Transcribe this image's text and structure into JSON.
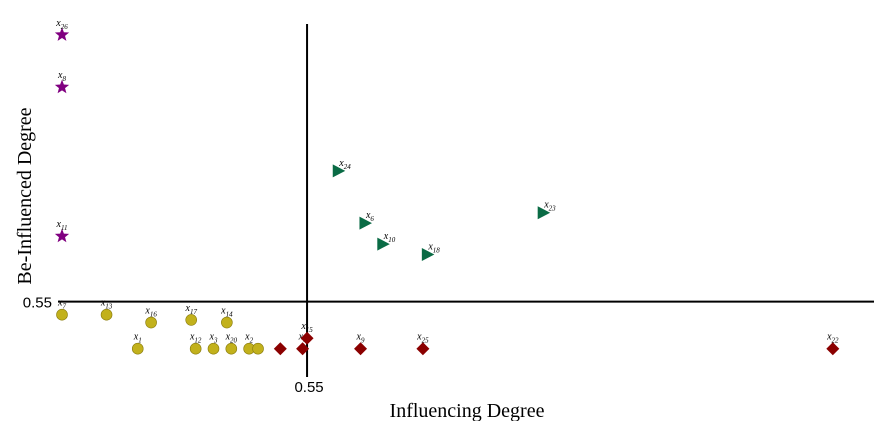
{
  "chart_data": {
    "type": "scatter",
    "xlabel": "Influencing Degree",
    "ylabel": "Be-Influenced Degree",
    "x_threshold": 0.55,
    "y_threshold": 0.55,
    "x_tick_label": "0.55",
    "y_tick_label": "0.55",
    "xlim": [
      0.0,
      1.8
    ],
    "ylim": [
      0.3,
      1.6
    ],
    "grid": false,
    "legend": "none",
    "colors": {
      "star": "#800080",
      "triangle": "#0a6b45",
      "sphere": "#c2b11c",
      "diamond": "#8b0000"
    },
    "series": [
      {
        "marker": "star",
        "points": [
          {
            "label": "x",
            "sub": "26",
            "x": 0.0,
            "y": 1.57
          },
          {
            "label": "x",
            "sub": "8",
            "x": 0.0,
            "y": 1.37
          },
          {
            "label": "x",
            "sub": "11",
            "x": 0.0,
            "y": 0.8
          }
        ]
      },
      {
        "marker": "triangle",
        "points": [
          {
            "label": "x",
            "sub": "24",
            "x": 0.62,
            "y": 1.05
          },
          {
            "label": "x",
            "sub": "6",
            "x": 0.68,
            "y": 0.85
          },
          {
            "label": "x",
            "sub": "10",
            "x": 0.72,
            "y": 0.77
          },
          {
            "label": "x",
            "sub": "18",
            "x": 0.82,
            "y": 0.73
          },
          {
            "label": "x",
            "sub": "23",
            "x": 1.08,
            "y": 0.89
          }
        ]
      },
      {
        "marker": "sphere",
        "points": [
          {
            "label": "x",
            "sub": "7",
            "x": 0.0,
            "y": 0.5
          },
          {
            "label": "x",
            "sub": "13",
            "x": 0.1,
            "y": 0.5
          },
          {
            "label": "x",
            "sub": "16",
            "x": 0.2,
            "y": 0.47
          },
          {
            "label": "x",
            "sub": "17",
            "x": 0.29,
            "y": 0.48
          },
          {
            "label": "x",
            "sub": "14",
            "x": 0.37,
            "y": 0.47
          },
          {
            "label": "x",
            "sub": "1",
            "x": 0.17,
            "y": 0.37
          },
          {
            "label": "x",
            "sub": "12",
            "x": 0.3,
            "y": 0.37
          },
          {
            "label": "x",
            "sub": "3",
            "x": 0.34,
            "y": 0.37
          },
          {
            "label": "x",
            "sub": "20",
            "x": 0.38,
            "y": 0.37
          },
          {
            "label": "x",
            "sub": "2",
            "x": 0.42,
            "y": 0.37
          },
          {
            "label": "x",
            "sub": "",
            "x": 0.44,
            "y": 0.37
          }
        ]
      },
      {
        "marker": "diamond",
        "points": [
          {
            "label": "x",
            "sub": "",
            "x": 0.49,
            "y": 0.37
          },
          {
            "label": "x",
            "sub": "4",
            "x": 0.54,
            "y": 0.37
          },
          {
            "label": "x",
            "sub": "15",
            "x": 0.55,
            "y": 0.41
          },
          {
            "label": "x",
            "sub": "9",
            "x": 0.67,
            "y": 0.37
          },
          {
            "label": "x",
            "sub": "25",
            "x": 0.81,
            "y": 0.37
          },
          {
            "label": "x",
            "sub": "22",
            "x": 1.73,
            "y": 0.37
          }
        ]
      }
    ]
  }
}
